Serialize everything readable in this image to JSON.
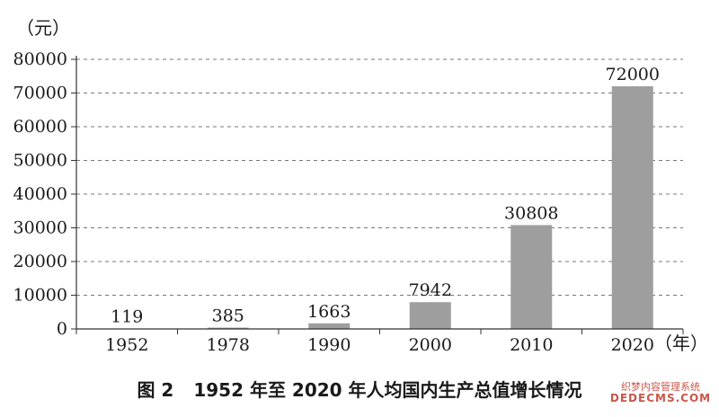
{
  "chart_data": {
    "type": "bar",
    "title": "1952 年至 2020 年人均国内生产总值增长情况",
    "figure_label": "图 2",
    "ylabel": "（元）",
    "xlabel": "（年）",
    "categories": [
      "1952",
      "1978",
      "1990",
      "2000",
      "2010",
      "2020"
    ],
    "values": [
      119,
      385,
      1663,
      7942,
      30808,
      72000
    ],
    "data_labels": [
      "119",
      "385",
      "1663",
      "7942",
      "30808",
      "72000"
    ],
    "ylim": [
      0,
      80000
    ],
    "yticks": [
      0,
      10000,
      20000,
      30000,
      40000,
      50000,
      60000,
      70000,
      80000
    ],
    "ytick_labels": [
      "0",
      "10000",
      "20000",
      "30000",
      "40000",
      "50000",
      "60000",
      "70000",
      "80000"
    ],
    "grid": "horizontal-dashed",
    "bar_color": "#9e9e9e"
  },
  "watermark": {
    "line1": "织梦内容管理系统",
    "line2": "DEDECMS.COM"
  }
}
